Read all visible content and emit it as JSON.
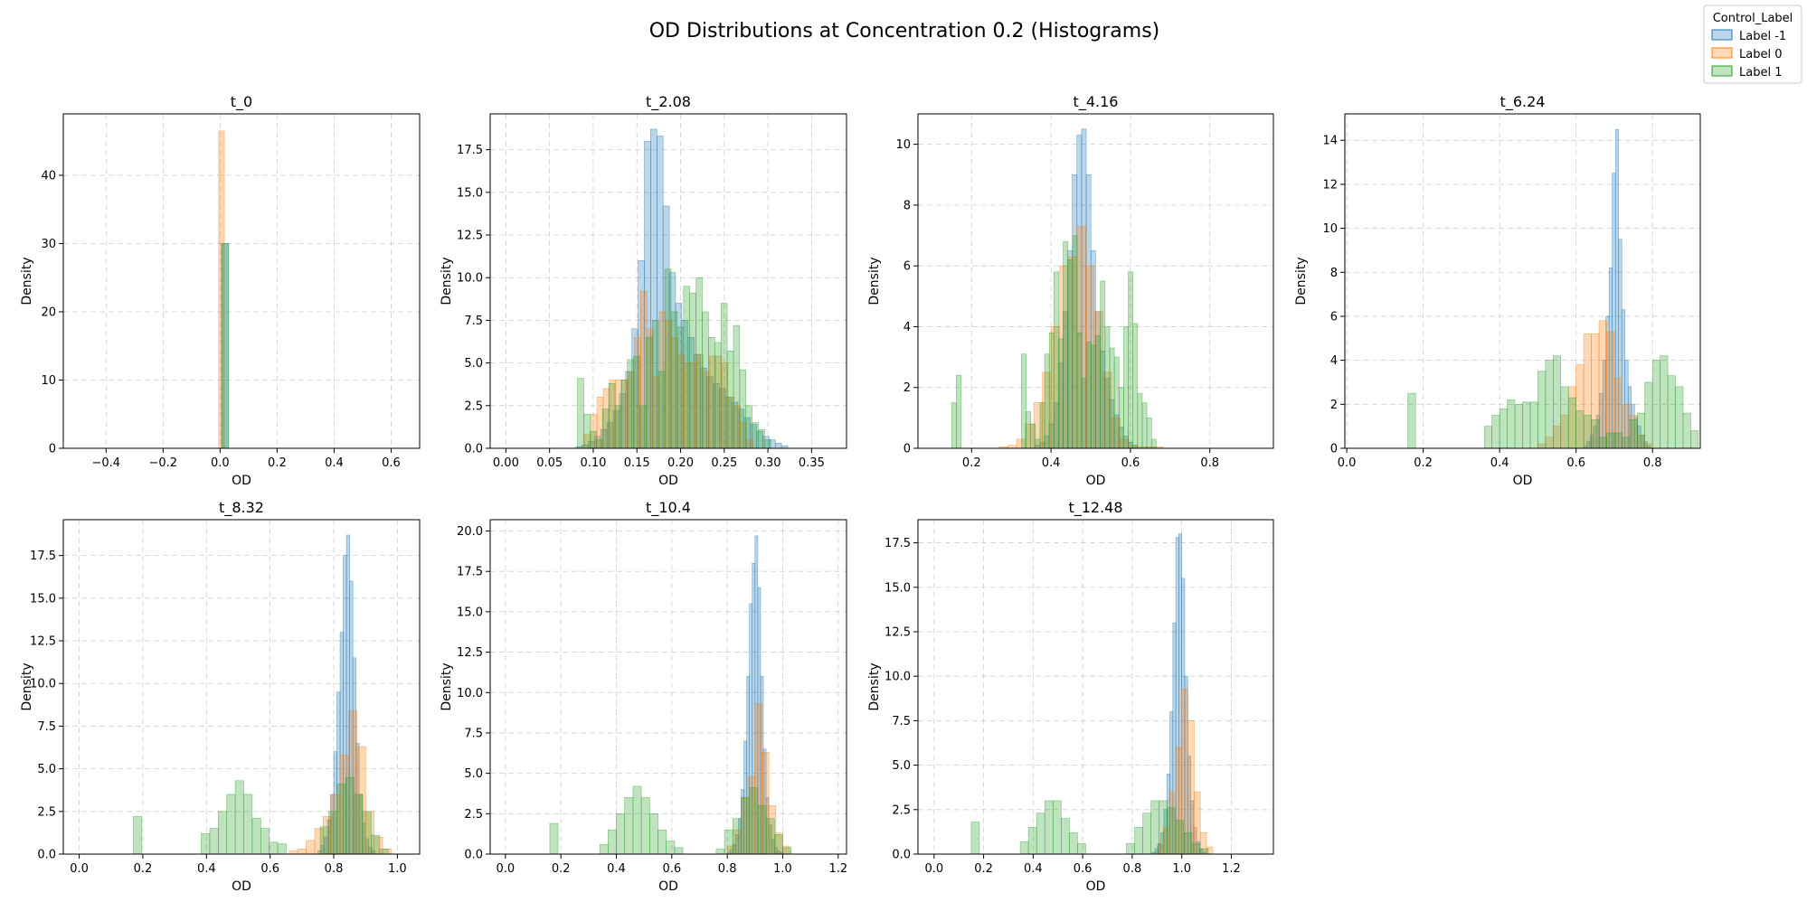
{
  "figure": {
    "title": "OD Distributions at Concentration 0.2 (Histograms)"
  },
  "legend": {
    "title": "Control_Label",
    "placement": "top-right",
    "entries": [
      {
        "label": "Label -1",
        "fill": "#1f77b4",
        "edge": "#1f77b4"
      },
      {
        "label": "Label 0",
        "fill": "#ff7f0e",
        "edge": "#ff7f0e"
      },
      {
        "label": "Label 1",
        "fill": "#2ca02c",
        "edge": "#2ca02c"
      }
    ]
  },
  "chart_data": [
    {
      "type": "histogram",
      "title": "t_0",
      "xlabel": "OD",
      "ylabel": "Density",
      "grid": true,
      "xlim": [
        -0.55,
        0.7
      ],
      "ylim": [
        0,
        49
      ],
      "xticks": [
        -0.4,
        -0.2,
        0.0,
        0.2,
        0.4,
        0.6
      ],
      "xtick_labels": [
        "−0.4",
        "−0.2",
        "0.0",
        "0.2",
        "0.4",
        "0.6"
      ],
      "yticks": [
        0,
        10,
        20,
        30,
        40
      ],
      "ytick_labels": [
        "0",
        "10",
        "20",
        "30",
        "40"
      ],
      "series": [
        {
          "name": "Label 0",
          "bins": [
            [
              -0.005,
              0.015,
              46.5
            ]
          ]
        },
        {
          "name": "Label -1",
          "bins": [
            [
              0.005,
              0.03,
              30
            ]
          ]
        },
        {
          "name": "Label 1",
          "bins": [
            [
              0.005,
              0.03,
              30
            ]
          ]
        }
      ]
    },
    {
      "type": "histogram",
      "title": "t_2.08",
      "xlabel": "OD",
      "ylabel": "Density",
      "grid": true,
      "xlim": [
        -0.018,
        0.39
      ],
      "ylim": [
        0,
        19.6
      ],
      "xticks": [
        0.0,
        0.05,
        0.1,
        0.15,
        0.2,
        0.25,
        0.3,
        0.35
      ],
      "xtick_labels": [
        "0.00",
        "0.05",
        "0.10",
        "0.15",
        "0.20",
        "0.25",
        "0.30",
        "0.35"
      ],
      "yticks": [
        0,
        2.5,
        5,
        7.5,
        10,
        12.5,
        15,
        17.5
      ],
      "ytick_labels": [
        "0.0",
        "2.5",
        "5.0",
        "7.5",
        "10.0",
        "12.5",
        "15.0",
        "17.5"
      ],
      "series": [
        {
          "name": "Label -1",
          "bin_start": 0.08,
          "bin_width": 0.00714,
          "values": [
            0.1,
            0.2,
            0.4,
            0.7,
            1.1,
            1.5,
            2.2,
            3.2,
            4.5,
            7,
            11,
            18,
            18.7,
            18.3,
            14.2,
            10.3,
            8.5,
            7.5,
            6.5,
            5.5,
            4.7,
            4.2,
            3.8,
            3.5,
            3,
            2.7,
            2.3,
            1.8,
            1.4,
            1,
            0.7,
            0.5,
            0.3,
            0.15
          ]
        },
        {
          "name": "Label 0",
          "bin_start": 0.09,
          "bin_width": 0.00714,
          "values": [
            0.8,
            2,
            3,
            3.5,
            4,
            4,
            4,
            4.5,
            6.5,
            9.2,
            7,
            4.2,
            8,
            7.5,
            6.5,
            5.5,
            5,
            5,
            5.5,
            4.5,
            5.4,
            5.4,
            5,
            3,
            2.5,
            1.5,
            0.5
          ]
        },
        {
          "name": "Label 1",
          "bin_start": 0.082,
          "bin_width": 0.00714,
          "values": [
            4.1,
            2,
            1,
            0.5,
            2.3,
            3.8,
            2.5,
            4,
            5.2,
            5.4,
            2.5,
            6.5,
            7.5,
            4.5,
            10.5,
            8,
            7.1,
            9.5,
            9.1,
            10,
            8,
            6.5,
            6.2,
            8.5,
            5.7,
            7.2,
            4.6,
            2.5,
            1.5,
            1.1,
            0.5
          ]
        }
      ]
    },
    {
      "type": "histogram",
      "title": "t_4.16",
      "xlabel": "OD",
      "ylabel": "Density",
      "grid": true,
      "xlim": [
        0.065,
        0.96
      ],
      "ylim": [
        0,
        11
      ],
      "xticks": [
        0.2,
        0.4,
        0.6,
        0.8
      ],
      "xtick_labels": [
        "0.2",
        "0.4",
        "0.6",
        "0.8"
      ],
      "yticks": [
        0,
        2,
        4,
        6,
        8,
        10
      ],
      "ytick_labels": [
        "0",
        "2",
        "4",
        "6",
        "8",
        "10"
      ],
      "series": [
        {
          "name": "Label -1",
          "bin_start": 0.36,
          "bin_width": 0.0117,
          "values": [
            0.1,
            0.2,
            0.4,
            0.8,
            1.5,
            2.8,
            4.5,
            6.5,
            9,
            10.3,
            10.5,
            9,
            6.5,
            4.5,
            3.2,
            2.3,
            1.6,
            1.1,
            0.7,
            0.4,
            0.2,
            0.1
          ]
        },
        {
          "name": "Label 0",
          "bin_start": 0.27,
          "bin_width": 0.0217,
          "values": [
            0.05,
            0.1,
            0.3,
            0.8,
            1.5,
            2.5,
            4,
            6,
            6.3,
            7.3,
            6,
            4.5,
            2.5,
            1,
            0.3,
            0.1,
            0.05,
            0.05,
            0.05
          ]
        },
        {
          "name": "Label 1",
          "bin_start": 0.15,
          "bin_width": 0.0117,
          "values": [
            1.5,
            2.4,
            0,
            0,
            0,
            0,
            0,
            0,
            0,
            0,
            0,
            0,
            0,
            0,
            0,
            3.1,
            1.2,
            0.8,
            0.3,
            1.5,
            3.1,
            3.8,
            5.8,
            3.6,
            6.8,
            6.2,
            7,
            3.8,
            2.3,
            3.5,
            3.4,
            3.7,
            5.5,
            4,
            3.3,
            3,
            2,
            4,
            5.8,
            4.1,
            1.8,
            1.5,
            1,
            0.3
          ]
        }
      ]
    },
    {
      "type": "histogram",
      "title": "t_6.24",
      "xlabel": "OD",
      "ylabel": "Density",
      "grid": true,
      "xlim": [
        -0.005,
        0.925
      ],
      "ylim": [
        0,
        15.2
      ],
      "xticks": [
        0.0,
        0.2,
        0.4,
        0.6,
        0.8
      ],
      "xtick_labels": [
        "0.0",
        "0.2",
        "0.4",
        "0.6",
        "0.8"
      ],
      "yticks": [
        0,
        2,
        4,
        6,
        8,
        10,
        12,
        14
      ],
      "ytick_labels": [
        "0",
        "2",
        "4",
        "6",
        "8",
        "10",
        "12",
        "14"
      ],
      "series": [
        {
          "name": "Label -1",
          "bin_start": 0.62,
          "bin_width": 0.0083,
          "values": [
            0.1,
            0.3,
            0.6,
            1,
            1.5,
            2.5,
            4,
            6,
            8.2,
            12.5,
            14.5,
            9.5,
            6.3,
            4,
            2.8,
            2,
            1.4,
            1,
            0.6,
            0.3,
            0.1
          ]
        },
        {
          "name": "Label 0",
          "bin_start": 0.5,
          "bin_width": 0.02,
          "values": [
            0.2,
            0.5,
            1,
            1.5,
            2.8,
            3.8,
            5.2,
            5.2,
            5.8,
            5.3,
            3.2,
            2,
            1.5,
            0.6,
            0.2
          ]
        },
        {
          "name": "Label 1",
          "bin_start": 0.16,
          "bin_width": 0.02,
          "values": [
            2.5,
            0,
            0,
            0,
            0,
            0,
            0,
            0,
            0,
            0,
            1,
            1.5,
            1.8,
            2.2,
            2,
            2.1,
            2.1,
            3.5,
            4,
            4.2,
            2.8,
            2.3,
            1.7,
            1.5,
            1.3,
            0.5,
            0.7,
            0.7,
            0.5,
            1.3,
            1.6,
            3,
            4,
            4.2,
            3.3,
            2.8,
            1.6,
            0.8
          ]
        }
      ]
    },
    {
      "type": "histogram",
      "title": "t_8.32",
      "xlabel": "OD",
      "ylabel": "Density",
      "grid": true,
      "xlim": [
        -0.05,
        1.07
      ],
      "ylim": [
        0,
        19.6
      ],
      "xticks": [
        0.0,
        0.2,
        0.4,
        0.6,
        0.8,
        1.0
      ],
      "xtick_labels": [
        "0.0",
        "0.2",
        "0.4",
        "0.6",
        "0.8",
        "1.0"
      ],
      "yticks": [
        0,
        2.5,
        5,
        7.5,
        10,
        12.5,
        15,
        17.5
      ],
      "ytick_labels": [
        "0.0",
        "2.5",
        "5.0",
        "7.5",
        "10.0",
        "12.5",
        "15.0",
        "17.5"
      ],
      "series": [
        {
          "name": "Label -1",
          "bin_start": 0.75,
          "bin_width": 0.01,
          "values": [
            0.2,
            0.5,
            1,
            2,
            3.5,
            6,
            9.5,
            13,
            17.5,
            18.7,
            16,
            11.5,
            6.5,
            3.5,
            1.8,
            0.9,
            0.4,
            0.2
          ]
        },
        {
          "name": "Label 0",
          "bin_start": 0.66,
          "bin_width": 0.0267,
          "values": [
            0.2,
            0.3,
            0.8,
            1.5,
            2.2,
            3.5,
            5.8,
            8.4,
            6.3,
            2.5,
            1,
            0.3
          ]
        },
        {
          "name": "Label 1",
          "bin_start": 0.17,
          "bin_width": 0.0267,
          "values": [
            2.2,
            0,
            0,
            0,
            0,
            0,
            0,
            0,
            1.2,
            1.5,
            2.5,
            3.5,
            4.3,
            3.5,
            2.1,
            1.5,
            0.7,
            0.6,
            0,
            0,
            0,
            0,
            1.6,
            2.5,
            4.1,
            4.5,
            3.5,
            2.5,
            1.1,
            0.3
          ]
        }
      ]
    },
    {
      "type": "histogram",
      "title": "t_10.4",
      "xlabel": "OD",
      "ylabel": "Density",
      "grid": true,
      "xlim": [
        -0.055,
        1.23
      ],
      "ylim": [
        0,
        20.7
      ],
      "xticks": [
        0.0,
        0.2,
        0.4,
        0.6,
        0.8,
        1.0,
        1.2
      ],
      "xtick_labels": [
        "0.0",
        "0.2",
        "0.4",
        "0.6",
        "0.8",
        "1.0",
        "1.2"
      ],
      "yticks": [
        0,
        2.5,
        5,
        7.5,
        10,
        12.5,
        15,
        17.5,
        20
      ],
      "ytick_labels": [
        "0.0",
        "2.5",
        "5.0",
        "7.5",
        "10.0",
        "12.5",
        "15.0",
        "17.5",
        "20.0"
      ],
      "series": [
        {
          "name": "Label -1",
          "bin_start": 0.8,
          "bin_width": 0.01,
          "values": [
            0.1,
            0.3,
            0.6,
            1.2,
            2.2,
            4,
            7,
            11,
            15.5,
            18,
            19.7,
            16.5,
            11,
            6.5,
            3.5,
            1.8,
            0.9,
            0.4,
            0.2,
            0.1
          ]
        },
        {
          "name": "Label 0",
          "bin_start": 0.8,
          "bin_width": 0.025,
          "values": [
            0.5,
            1.5,
            3.5,
            4.8,
            9.3,
            6.3,
            3,
            1.3,
            0.5
          ]
        },
        {
          "name": "Label 1",
          "bin_start": 0.16,
          "bin_width": 0.03,
          "values": [
            1.9,
            0,
            0,
            0,
            0,
            0,
            0.6,
            1.5,
            2.5,
            3.5,
            4.2,
            3.5,
            2.5,
            1.5,
            0.8,
            0.4,
            0,
            0,
            0,
            0,
            0.3,
            1.5,
            2.2,
            3.5,
            4.1,
            3,
            2.2,
            1.2,
            0.4
          ]
        }
      ]
    },
    {
      "type": "histogram",
      "title": "t_12.48",
      "xlabel": "OD",
      "ylabel": "Density",
      "grid": true,
      "xlim": [
        -0.065,
        1.37
      ],
      "ylim": [
        0,
        18.8
      ],
      "xticks": [
        0.0,
        0.2,
        0.4,
        0.6,
        0.8,
        1.0,
        1.2
      ],
      "xtick_labels": [
        "0.0",
        "0.2",
        "0.4",
        "0.6",
        "0.8",
        "1.0",
        "1.2"
      ],
      "yticks": [
        0,
        2.5,
        5,
        7.5,
        10,
        12.5,
        15,
        17.5
      ],
      "ytick_labels": [
        "0.0",
        "2.5",
        "5.0",
        "7.5",
        "10.0",
        "12.5",
        "15.0",
        "17.5"
      ],
      "series": [
        {
          "name": "Label -1",
          "bin_start": 0.88,
          "bin_width": 0.012,
          "values": [
            0.1,
            0.3,
            0.6,
            1.2,
            2.5,
            4.5,
            8,
            13,
            17.8,
            18,
            15.5,
            10,
            5.5,
            3,
            1.5,
            0.7,
            0.3,
            0.1
          ]
        },
        {
          "name": "Label 0",
          "bin_start": 0.9,
          "bin_width": 0.025,
          "values": [
            0.5,
            1.5,
            3.5,
            6,
            9.3,
            7.5,
            3.5,
            1.2,
            0.4
          ]
        },
        {
          "name": "Label 1",
          "bin_start": 0.15,
          "bin_width": 0.033,
          "values": [
            1.8,
            0,
            0,
            0,
            0,
            0,
            0.7,
            1.5,
            2.3,
            3,
            3,
            2,
            1.2,
            0.6,
            0,
            0,
            0,
            0,
            0,
            0.6,
            1.5,
            2.3,
            3,
            3,
            2.6,
            1.9,
            1.2,
            0.6,
            0.3
          ]
        }
      ]
    }
  ]
}
